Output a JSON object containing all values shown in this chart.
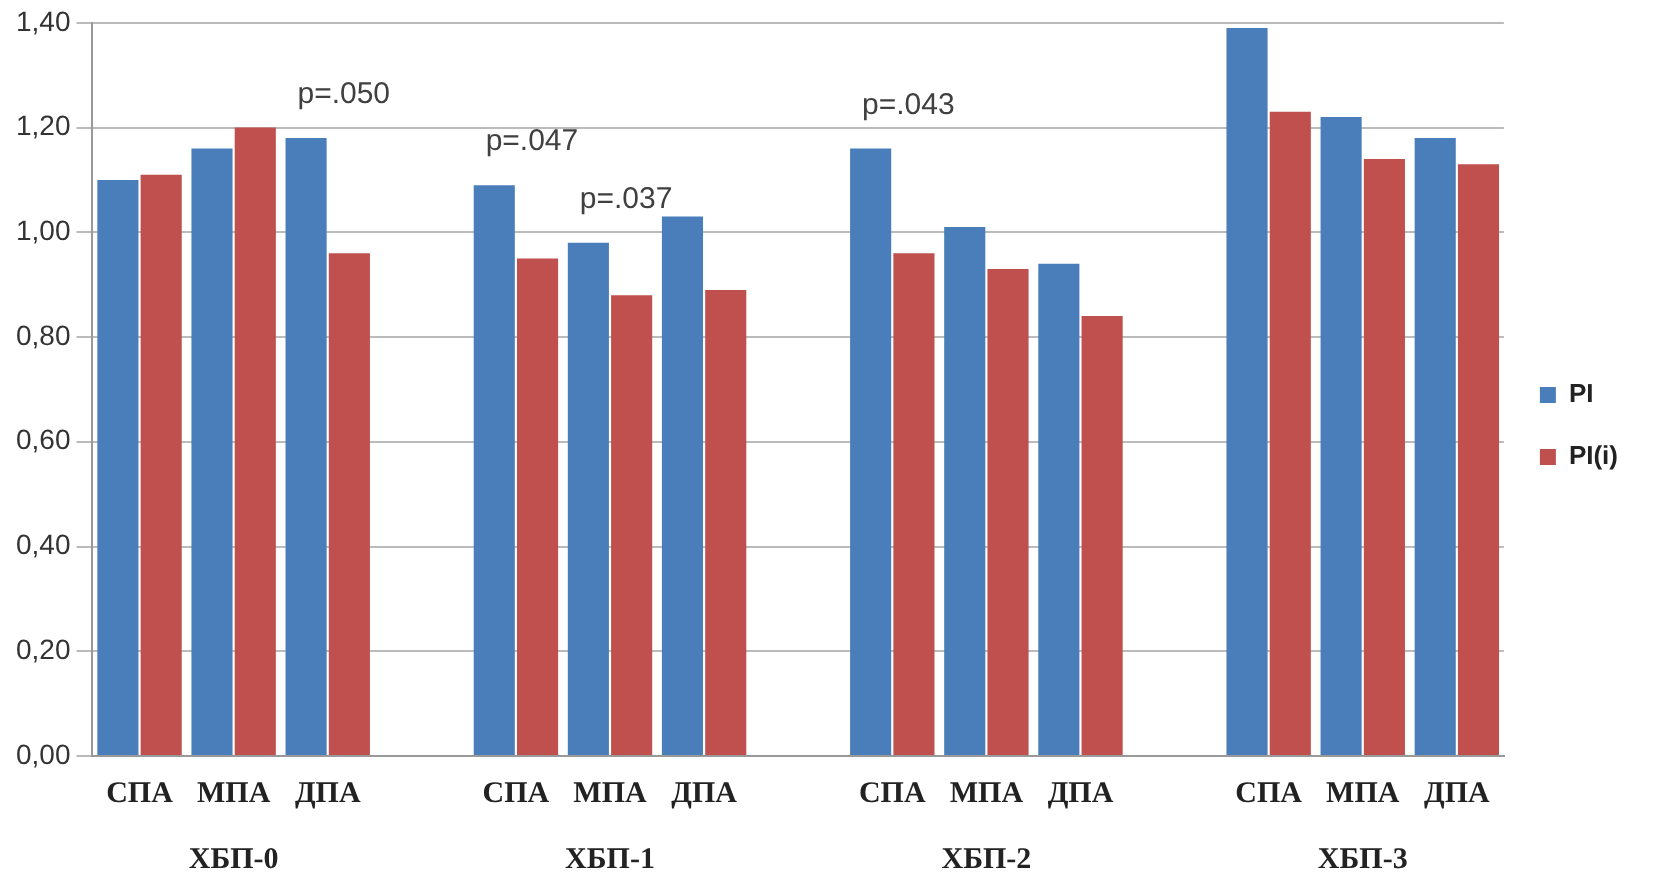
{
  "chart_data": {
    "type": "bar",
    "categories": [
      "СПА",
      "МПА",
      "ДПА",
      null,
      "СПА",
      "МПА",
      "ДПА",
      null,
      "СПА",
      "МПА",
      "ДПА",
      null,
      "СПА",
      "МПА",
      "ДПА"
    ],
    "series": [
      {
        "name": "PI",
        "color": "#4a7ebb",
        "values": [
          1.1,
          1.16,
          1.18,
          null,
          1.09,
          0.98,
          1.03,
          null,
          1.16,
          1.01,
          0.94,
          null,
          1.39,
          1.22,
          1.18
        ]
      },
      {
        "name": "PI(i)",
        "color": "#c0504d",
        "values": [
          1.11,
          1.2,
          0.96,
          null,
          0.95,
          0.88,
          0.89,
          null,
          0.96,
          0.93,
          0.84,
          null,
          1.23,
          1.14,
          1.13
        ]
      }
    ],
    "ylim": [
      0,
      1.4
    ],
    "yticks": [
      {
        "value": 0,
        "label": "0,00"
      },
      {
        "value": 0.2,
        "label": "0,20"
      },
      {
        "value": 0.4,
        "label": "0,40"
      },
      {
        "value": 0.6,
        "label": "0,60"
      },
      {
        "value": 0.8,
        "label": "0,80"
      },
      {
        "value": 1.0,
        "label": "1,00"
      },
      {
        "value": 1.2,
        "label": "1,20"
      },
      {
        "value": 1.4,
        "label": "1,40"
      }
    ],
    "grid": "y",
    "legend": "right",
    "annotations": [
      "p=.050",
      "p=.047",
      "p=.037",
      "p=.043",
      "ХБП-0",
      "ХБП-1",
      "ХБП-2",
      "ХБП-3"
    ]
  }
}
